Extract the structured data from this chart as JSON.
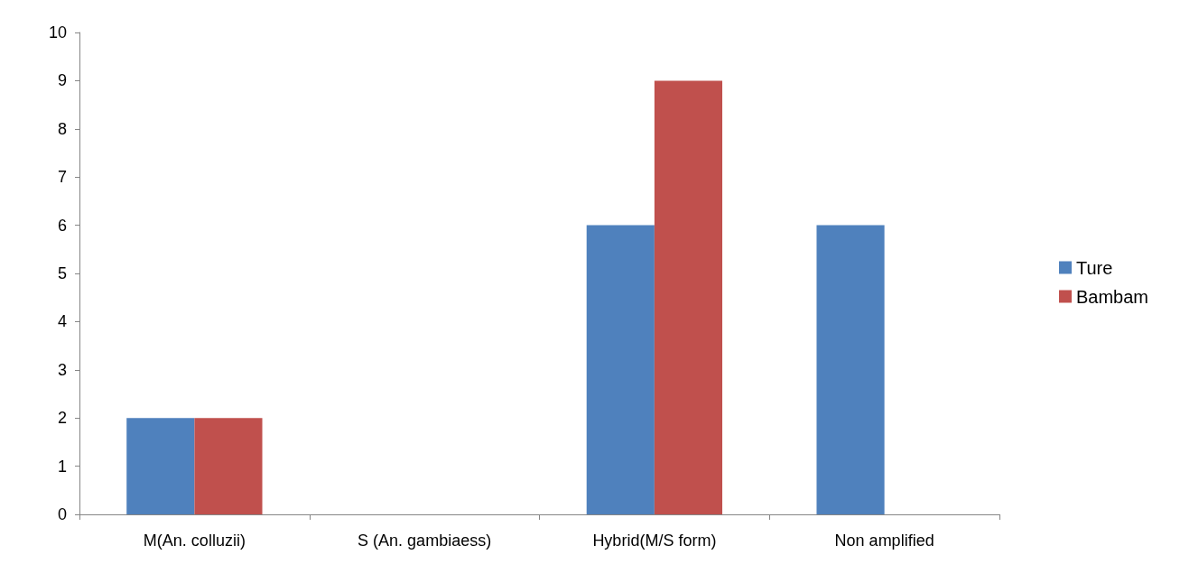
{
  "chart_data": {
    "type": "bar",
    "categories": [
      "M(An. colluzii)",
      "S (An. gambiaess)",
      "Hybrid(M/S form)",
      "Non amplified"
    ],
    "series": [
      {
        "name": "Ture",
        "color": "#4f81bd",
        "values": [
          2,
          0,
          6,
          6
        ]
      },
      {
        "name": "Bambam",
        "color": "#c0504d",
        "values": [
          2,
          0,
          9,
          0
        ]
      }
    ],
    "ylim": [
      0,
      10
    ],
    "yticks": [
      0,
      1,
      2,
      3,
      4,
      5,
      6,
      7,
      8,
      9,
      10
    ],
    "grid": false,
    "legend": "right"
  }
}
